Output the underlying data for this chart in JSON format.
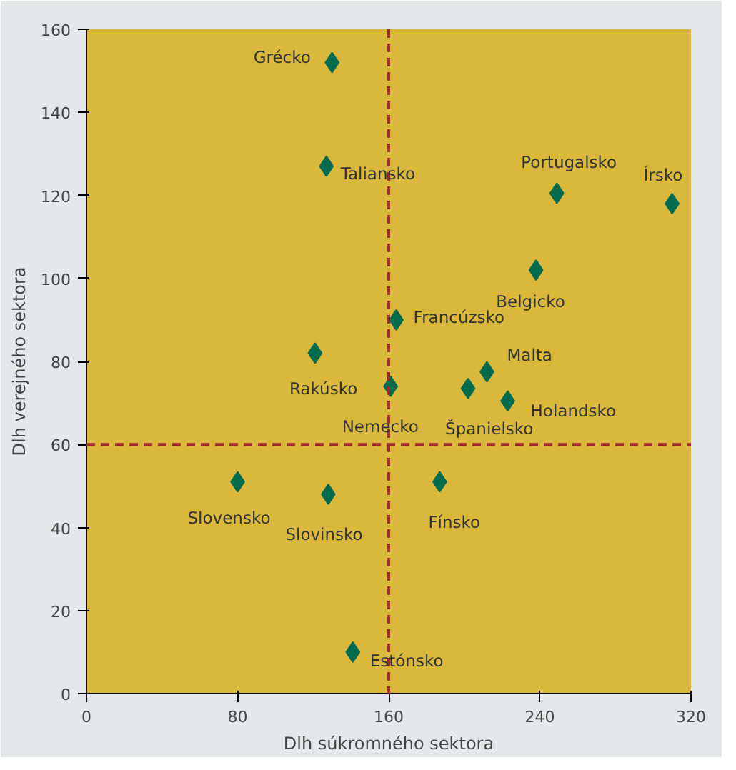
{
  "chart_data": {
    "type": "scatter",
    "xlabel": "Dlh súkromného sektora",
    "ylabel": "Dlh verejného sektora",
    "x": [
      130,
      127,
      249,
      310,
      238,
      164,
      121,
      212,
      161,
      202,
      223,
      80,
      128,
      187,
      141
    ],
    "values": [
      152,
      127,
      120.5,
      118,
      102,
      90,
      82,
      77.5,
      74,
      73.5,
      70.5,
      51,
      48,
      51,
      10
    ],
    "color": "#006b4f",
    "marker": "diamond",
    "xlim": [
      0,
      320
    ],
    "xticks": [
      0,
      80,
      160,
      240,
      320
    ],
    "ylim": [
      0,
      160
    ],
    "yticks": [
      0,
      20,
      40,
      60,
      80,
      100,
      120,
      140,
      160
    ],
    "grid": false,
    "ref_lines": [
      {
        "axis": "x",
        "value": 160,
        "color": "#a32a2a",
        "line_style": "dashed"
      },
      {
        "axis": "y",
        "value": 60,
        "color": "#a32a2a",
        "line_style": "dashed"
      }
    ],
    "annotations": [
      {
        "text": "Grécko",
        "x": 130,
        "y": 152
      },
      {
        "text": "Taliansko",
        "x": 127,
        "y": 127
      },
      {
        "text": "Portugalsko",
        "x": 249,
        "y": 120.5
      },
      {
        "text": "Írsko",
        "x": 310,
        "y": 118
      },
      {
        "text": "Belgicko",
        "x": 238,
        "y": 102
      },
      {
        "text": "Francúzsko",
        "x": 164,
        "y": 90
      },
      {
        "text": "Rakúsko",
        "x": 121,
        "y": 82
      },
      {
        "text": "Malta",
        "x": 212,
        "y": 77.5
      },
      {
        "text": "Nemecko",
        "x": 161,
        "y": 74
      },
      {
        "text": "Španielsko",
        "x": 202,
        "y": 73.5
      },
      {
        "text": "Holandsko",
        "x": 223,
        "y": 70.5
      },
      {
        "text": "Slovensko",
        "x": 80,
        "y": 51
      },
      {
        "text": "Slovinsko",
        "x": 128,
        "y": 48
      },
      {
        "text": "Fínsko",
        "x": 187,
        "y": 51
      },
      {
        "text": "Estónsko",
        "x": 141,
        "y": 10
      }
    ]
  }
}
